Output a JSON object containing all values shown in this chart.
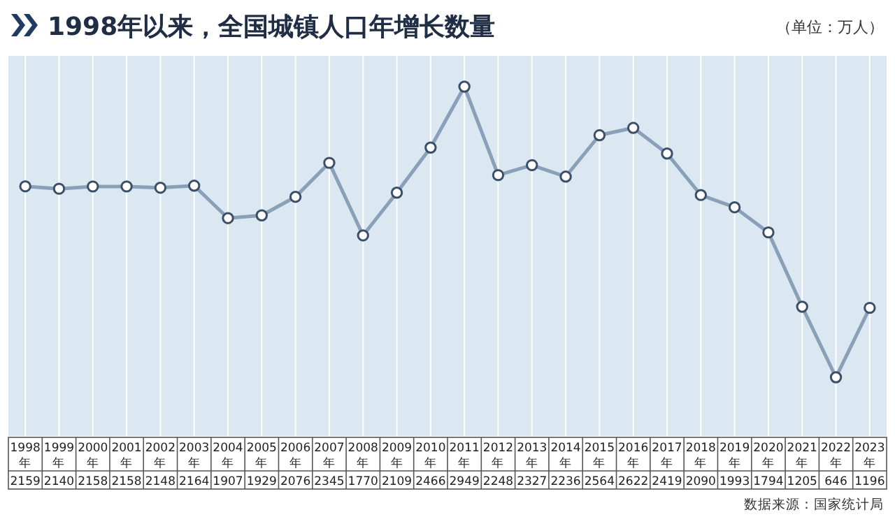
{
  "chart_data": {
    "type": "line",
    "title": "1998年以来，全国城镇人口年增长数量",
    "ylabel": "（单位：万人）",
    "categories": [
      "1998年",
      "1999年",
      "2000年",
      "2001年",
      "2002年",
      "2003年",
      "2004年",
      "2005年",
      "2006年",
      "2007年",
      "2008年",
      "2009年",
      "2010年",
      "2011年",
      "2012年",
      "2013年",
      "2014年",
      "2015年",
      "2016年",
      "2017年",
      "2018年",
      "2019年",
      "2020年",
      "2021年",
      "2022年",
      "2023年"
    ],
    "values": [
      2159,
      2140,
      2158,
      2158,
      2148,
      2164,
      1907,
      1929,
      2076,
      2345,
      1770,
      2109,
      2466,
      2949,
      2248,
      2327,
      2236,
      2564,
      2622,
      2419,
      2090,
      1993,
      1794,
      1205,
      646,
      1196
    ],
    "color": "#8aa0b8",
    "marker": "circle",
    "grid": "x",
    "data_labels": true,
    "annotations": [
      "数据来源：国家统计局"
    ]
  }
}
